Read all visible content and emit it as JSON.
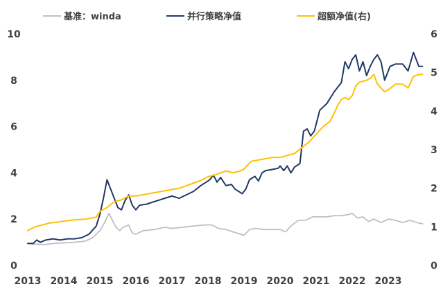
{
  "chart_data": {
    "type": "line",
    "title": "",
    "xlabel": "",
    "ylabel": "",
    "x_ticks": [
      "2013",
      "2014",
      "2015",
      "2016",
      "2017",
      "2018",
      "2019",
      "2020",
      "2021",
      "2022",
      "2023"
    ],
    "y_left_ticks": [
      "0",
      "2",
      "4",
      "6",
      "8",
      "10"
    ],
    "y_right_ticks": [
      "0",
      "1",
      "2",
      "3",
      "4",
      "5",
      "6"
    ],
    "ylim_left": [
      0,
      10
    ],
    "ylim_right": [
      0,
      6
    ],
    "xlim": [
      2013.0,
      2024.0
    ],
    "grid": false,
    "legend_position": "top",
    "series": [
      {
        "name": "基准：winda",
        "axis": "left",
        "color": "#bfbfbf",
        "points": [
          [
            2013.0,
            0.95
          ],
          [
            2013.2,
            0.92
          ],
          [
            2013.5,
            0.9
          ],
          [
            2013.7,
            0.95
          ],
          [
            2014.0,
            0.98
          ],
          [
            2014.3,
            1.0
          ],
          [
            2014.6,
            1.05
          ],
          [
            2014.8,
            1.2
          ],
          [
            2015.0,
            1.5
          ],
          [
            2015.15,
            1.9
          ],
          [
            2015.25,
            2.25
          ],
          [
            2015.35,
            1.95
          ],
          [
            2015.45,
            1.65
          ],
          [
            2015.55,
            1.5
          ],
          [
            2015.65,
            1.65
          ],
          [
            2015.8,
            1.75
          ],
          [
            2015.9,
            1.4
          ],
          [
            2016.0,
            1.35
          ],
          [
            2016.2,
            1.5
          ],
          [
            2016.5,
            1.55
          ],
          [
            2016.8,
            1.65
          ],
          [
            2017.0,
            1.6
          ],
          [
            2017.3,
            1.65
          ],
          [
            2017.6,
            1.7
          ],
          [
            2017.9,
            1.75
          ],
          [
            2018.1,
            1.75
          ],
          [
            2018.3,
            1.6
          ],
          [
            2018.5,
            1.55
          ],
          [
            2018.7,
            1.45
          ],
          [
            2018.9,
            1.35
          ],
          [
            2019.0,
            1.3
          ],
          [
            2019.15,
            1.55
          ],
          [
            2019.3,
            1.6
          ],
          [
            2019.6,
            1.55
          ],
          [
            2019.9,
            1.55
          ],
          [
            2020.0,
            1.55
          ],
          [
            2020.15,
            1.45
          ],
          [
            2020.3,
            1.7
          ],
          [
            2020.5,
            1.95
          ],
          [
            2020.7,
            1.95
          ],
          [
            2020.9,
            2.1
          ],
          [
            2021.1,
            2.1
          ],
          [
            2021.3,
            2.1
          ],
          [
            2021.5,
            2.15
          ],
          [
            2021.7,
            2.15
          ],
          [
            2021.9,
            2.2
          ],
          [
            2022.0,
            2.25
          ],
          [
            2022.15,
            2.05
          ],
          [
            2022.3,
            2.1
          ],
          [
            2022.45,
            1.9
          ],
          [
            2022.6,
            2.0
          ],
          [
            2022.8,
            1.85
          ],
          [
            2023.0,
            2.0
          ],
          [
            2023.2,
            1.95
          ],
          [
            2023.4,
            1.85
          ],
          [
            2023.6,
            1.95
          ],
          [
            2023.8,
            1.85
          ],
          [
            2023.95,
            1.8
          ]
        ]
      },
      {
        "name": "并行策略净值",
        "axis": "left",
        "color": "#203864",
        "points": [
          [
            2013.0,
            0.95
          ],
          [
            2013.15,
            0.95
          ],
          [
            2013.25,
            1.1
          ],
          [
            2013.35,
            1.0
          ],
          [
            2013.5,
            1.1
          ],
          [
            2013.7,
            1.15
          ],
          [
            2013.9,
            1.1
          ],
          [
            2014.1,
            1.15
          ],
          [
            2014.3,
            1.15
          ],
          [
            2014.5,
            1.2
          ],
          [
            2014.7,
            1.35
          ],
          [
            2014.9,
            1.7
          ],
          [
            2015.0,
            2.2
          ],
          [
            2015.1,
            2.9
          ],
          [
            2015.2,
            3.7
          ],
          [
            2015.3,
            3.3
          ],
          [
            2015.4,
            2.9
          ],
          [
            2015.5,
            2.5
          ],
          [
            2015.6,
            2.4
          ],
          [
            2015.7,
            2.8
          ],
          [
            2015.8,
            3.05
          ],
          [
            2015.9,
            2.6
          ],
          [
            2016.0,
            2.4
          ],
          [
            2016.1,
            2.6
          ],
          [
            2016.3,
            2.65
          ],
          [
            2016.5,
            2.75
          ],
          [
            2016.7,
            2.85
          ],
          [
            2016.9,
            2.95
          ],
          [
            2017.0,
            3.0
          ],
          [
            2017.2,
            2.9
          ],
          [
            2017.4,
            3.05
          ],
          [
            2017.6,
            3.2
          ],
          [
            2017.8,
            3.45
          ],
          [
            2017.95,
            3.6
          ],
          [
            2018.05,
            3.7
          ],
          [
            2018.15,
            3.9
          ],
          [
            2018.25,
            3.6
          ],
          [
            2018.35,
            3.8
          ],
          [
            2018.5,
            3.45
          ],
          [
            2018.65,
            3.5
          ],
          [
            2018.75,
            3.3
          ],
          [
            2018.85,
            3.2
          ],
          [
            2018.95,
            3.1
          ],
          [
            2019.05,
            3.3
          ],
          [
            2019.15,
            3.7
          ],
          [
            2019.3,
            3.85
          ],
          [
            2019.4,
            3.65
          ],
          [
            2019.5,
            4.0
          ],
          [
            2019.6,
            4.1
          ],
          [
            2019.8,
            4.15
          ],
          [
            2019.95,
            4.2
          ],
          [
            2020.0,
            4.3
          ],
          [
            2020.1,
            4.1
          ],
          [
            2020.2,
            4.3
          ],
          [
            2020.3,
            4.0
          ],
          [
            2020.4,
            4.25
          ],
          [
            2020.55,
            4.4
          ],
          [
            2020.65,
            5.8
          ],
          [
            2020.75,
            5.9
          ],
          [
            2020.85,
            5.6
          ],
          [
            2020.95,
            5.8
          ],
          [
            2021.1,
            6.7
          ],
          [
            2021.3,
            7.0
          ],
          [
            2021.5,
            7.5
          ],
          [
            2021.7,
            7.9
          ],
          [
            2021.8,
            8.8
          ],
          [
            2021.9,
            8.5
          ],
          [
            2022.0,
            8.9
          ],
          [
            2022.1,
            9.1
          ],
          [
            2022.2,
            8.4
          ],
          [
            2022.3,
            8.8
          ],
          [
            2022.4,
            8.2
          ],
          [
            2022.5,
            8.6
          ],
          [
            2022.6,
            8.9
          ],
          [
            2022.7,
            9.1
          ],
          [
            2022.8,
            8.8
          ],
          [
            2022.9,
            8.0
          ],
          [
            2023.05,
            8.6
          ],
          [
            2023.2,
            8.7
          ],
          [
            2023.4,
            8.7
          ],
          [
            2023.55,
            8.4
          ],
          [
            2023.7,
            9.2
          ],
          [
            2023.85,
            8.6
          ],
          [
            2023.95,
            8.6
          ]
        ]
      },
      {
        "name": "超额净值(右)",
        "axis": "right",
        "color": "#ffc000",
        "points": [
          [
            2013.0,
            0.9
          ],
          [
            2013.2,
            1.0
          ],
          [
            2013.4,
            1.05
          ],
          [
            2013.6,
            1.1
          ],
          [
            2013.8,
            1.12
          ],
          [
            2014.0,
            1.15
          ],
          [
            2014.3,
            1.18
          ],
          [
            2014.6,
            1.2
          ],
          [
            2014.9,
            1.25
          ],
          [
            2015.0,
            1.4
          ],
          [
            2015.2,
            1.5
          ],
          [
            2015.4,
            1.65
          ],
          [
            2015.6,
            1.7
          ],
          [
            2015.8,
            1.8
          ],
          [
            2016.0,
            1.8
          ],
          [
            2016.3,
            1.85
          ],
          [
            2016.6,
            1.9
          ],
          [
            2016.9,
            1.95
          ],
          [
            2017.2,
            2.0
          ],
          [
            2017.5,
            2.1
          ],
          [
            2017.8,
            2.2
          ],
          [
            2018.0,
            2.3
          ],
          [
            2018.2,
            2.35
          ],
          [
            2018.35,
            2.4
          ],
          [
            2018.5,
            2.45
          ],
          [
            2018.7,
            2.4
          ],
          [
            2018.9,
            2.45
          ],
          [
            2019.0,
            2.5
          ],
          [
            2019.2,
            2.7
          ],
          [
            2019.5,
            2.75
          ],
          [
            2019.8,
            2.8
          ],
          [
            2020.0,
            2.8
          ],
          [
            2020.2,
            2.85
          ],
          [
            2020.4,
            2.9
          ],
          [
            2020.6,
            3.05
          ],
          [
            2020.8,
            3.2
          ],
          [
            2021.0,
            3.4
          ],
          [
            2021.2,
            3.6
          ],
          [
            2021.4,
            3.75
          ],
          [
            2021.5,
            3.95
          ],
          [
            2021.6,
            4.15
          ],
          [
            2021.7,
            4.3
          ],
          [
            2021.8,
            4.35
          ],
          [
            2021.9,
            4.3
          ],
          [
            2022.0,
            4.4
          ],
          [
            2022.1,
            4.65
          ],
          [
            2022.2,
            4.75
          ],
          [
            2022.4,
            4.8
          ],
          [
            2022.5,
            4.85
          ],
          [
            2022.6,
            4.95
          ],
          [
            2022.7,
            4.7
          ],
          [
            2022.8,
            4.6
          ],
          [
            2022.9,
            4.5
          ],
          [
            2023.0,
            4.55
          ],
          [
            2023.2,
            4.7
          ],
          [
            2023.4,
            4.7
          ],
          [
            2023.55,
            4.6
          ],
          [
            2023.7,
            4.9
          ],
          [
            2023.85,
            4.95
          ],
          [
            2023.95,
            4.95
          ]
        ]
      }
    ]
  }
}
